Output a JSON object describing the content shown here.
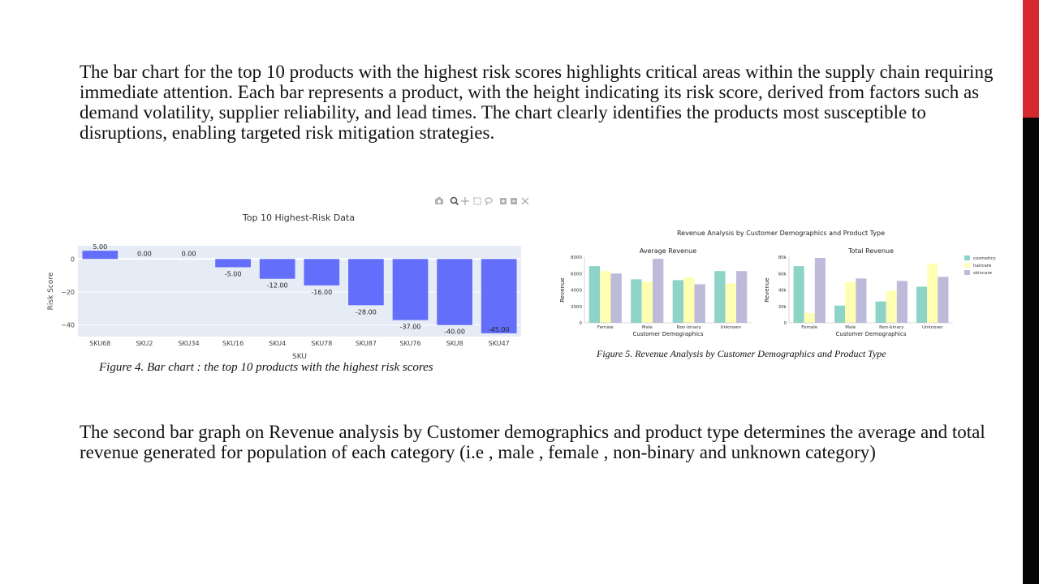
{
  "paragraphs": {
    "intro": "The bar chart for the top 10 products with the highest risk scores highlights critical areas within the supply chain requiring immediate attention. Each bar represents a product, with the height indicating its risk score, derived from factors such as demand volatility, supplier reliability, and lead times. The chart clearly identifies the products most susceptible to disruptions, enabling targeted risk mitigation strategies.",
    "second": "The second bar graph on Revenue analysis by Customer demographics and product type determines the average and total revenue generated for population of each category (i.e , male , female , non-binary and unknown category)"
  },
  "captions": {
    "fig4": "Figure 4. Bar chart : the top 10 products with the highest risk scores",
    "fig5": "Figure 5. Revenue Analysis by Customer Demographics and Product Type"
  },
  "toolbar_icons": [
    "camera-icon",
    "zoom-icon",
    "pan-icon",
    "box-select-icon",
    "lasso-icon",
    "zoom-in-icon",
    "zoom-out-icon",
    "autoscale-icon"
  ],
  "colors": {
    "accent_red": "#d42a30",
    "side_black": "#050505",
    "risk_bar": "#636efa",
    "plot_bg": "#e5ecf6",
    "cosmetics": "#8dd3c7",
    "haircare": "#ffffb3",
    "skincare": "#bebada"
  },
  "chart_data": [
    {
      "type": "bar",
      "title": "Top 10 Highest-Risk Data",
      "xlabel": "SKU",
      "ylabel": "Risk Score",
      "categories": [
        "SKU68",
        "SKU2",
        "SKU34",
        "SKU16",
        "SKU4",
        "SKU78",
        "SKU87",
        "SKU76",
        "SKU8",
        "SKU47"
      ],
      "values": [
        5.0,
        0.0,
        0.0,
        -5.0,
        -12.0,
        -16.0,
        -28.0,
        -37.0,
        -40.0,
        -45.0
      ],
      "labels": [
        "5.00",
        "0.00",
        "0.00",
        "-5.00",
        "-12.00",
        "-16.00",
        "-28.00",
        "-37.00",
        "-40.00",
        "-45.00"
      ],
      "yticks": [
        0,
        -20,
        -40
      ],
      "ytick_labels": [
        "0",
        "−20",
        "−40"
      ],
      "ylim": [
        -47,
        8
      ],
      "grid": true
    },
    {
      "type": "bar",
      "suptitle": "Revenue Analysis by Customer Demographics and Product Type",
      "title": "Average Revenue",
      "xlabel": "Customer Demographics",
      "ylabel": "Revenue",
      "categories": [
        "Female",
        "Male",
        "Non-binary",
        "Unknown"
      ],
      "series": [
        {
          "name": "cosmetics",
          "values": [
            6900,
            5300,
            5200,
            6300
          ]
        },
        {
          "name": "haircare",
          "values": [
            6300,
            5000,
            5500,
            4800
          ]
        },
        {
          "name": "skincare",
          "values": [
            6000,
            7800,
            4700,
            6300
          ]
        }
      ],
      "yticks": [
        0,
        2000,
        4000,
        6000,
        8000
      ],
      "ytick_labels": [
        "0",
        "2000",
        "4000",
        "6000",
        "8000"
      ],
      "ylim": [
        0,
        8000
      ]
    },
    {
      "type": "bar",
      "title": "Total Revenue",
      "xlabel": "Customer Demographics",
      "ylabel": "Revenue",
      "categories": [
        "Female",
        "Male",
        "Non-binary",
        "Unknown"
      ],
      "series": [
        {
          "name": "cosmetics",
          "values": [
            69000,
            21000,
            26000,
            44000
          ]
        },
        {
          "name": "haircare",
          "values": [
            12000,
            50000,
            39000,
            72000
          ]
        },
        {
          "name": "skincare",
          "values": [
            79000,
            54000,
            51000,
            56000
          ]
        }
      ],
      "yticks": [
        0,
        20000,
        40000,
        60000,
        80000
      ],
      "ytick_labels": [
        "0",
        "20k",
        "40k",
        "60k",
        "80k"
      ],
      "ylim": [
        0,
        80000
      ],
      "legend": "right"
    }
  ]
}
